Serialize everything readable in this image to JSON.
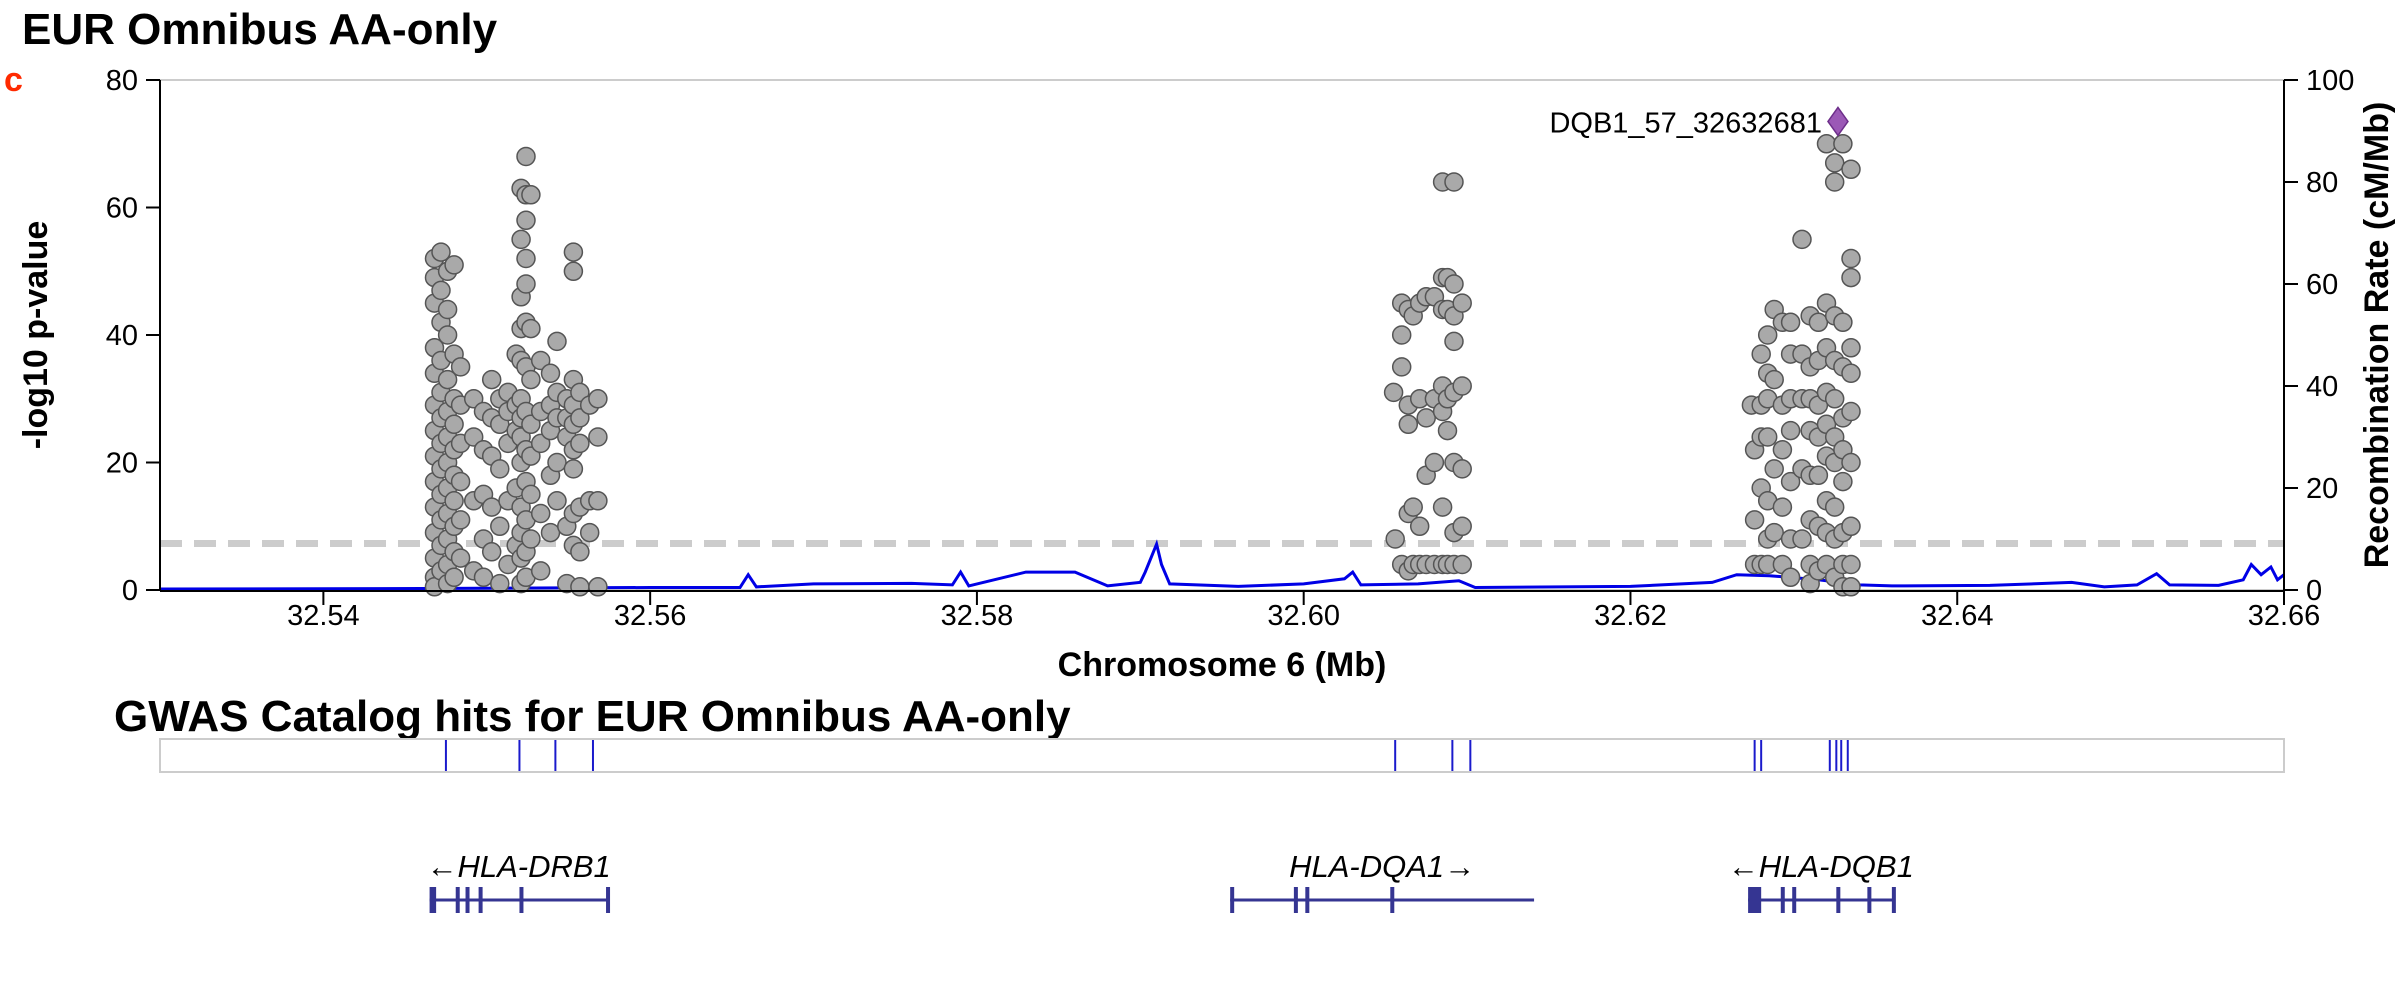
{
  "title": "EUR Omnibus AA-only",
  "panel_label": "c",
  "colors": {
    "points": "#a9a9a9",
    "point_stroke": "#555555",
    "recomb": "#0000e6",
    "threshold": "#cccccc",
    "lead": "#9b59b6",
    "panel_label": "#ff2a00",
    "gene": "#353592",
    "hits": "#1a1acc"
  },
  "chart_data": {
    "type": "scatter",
    "xlabel": "Chromosome 6 (Mb)",
    "ylabel": "-log10 p-value",
    "y2label": "Recombination Rate (cM/Mb)",
    "xlim": [
      32.53,
      32.66
    ],
    "ylim": [
      0,
      80
    ],
    "y2lim": [
      0,
      100
    ],
    "xticks": [
      "32.54",
      "32.56",
      "32.58",
      "32.60",
      "32.62",
      "32.64",
      "32.66"
    ],
    "yticks": [
      "0",
      "20",
      "40",
      "60",
      "80"
    ],
    "y2ticks": [
      "0",
      "20",
      "40",
      "60",
      "80",
      "100"
    ],
    "threshold": 7.3,
    "lead_snp": {
      "label": "DQB1_57_32632681",
      "x": 32.6327,
      "y": 73.5
    },
    "points": [
      [
        32.5468,
        52
      ],
      [
        32.5468,
        49
      ],
      [
        32.5468,
        45
      ],
      [
        32.5468,
        38
      ],
      [
        32.5468,
        34
      ],
      [
        32.5468,
        29
      ],
      [
        32.5468,
        25
      ],
      [
        32.5468,
        21
      ],
      [
        32.5468,
        17
      ],
      [
        32.5468,
        13
      ],
      [
        32.5468,
        9
      ],
      [
        32.5468,
        5
      ],
      [
        32.5468,
        2
      ],
      [
        32.5468,
        0.5
      ],
      [
        32.5472,
        53
      ],
      [
        32.5472,
        47
      ],
      [
        32.5472,
        42
      ],
      [
        32.5472,
        36
      ],
      [
        32.5472,
        31
      ],
      [
        32.5472,
        27
      ],
      [
        32.5472,
        23
      ],
      [
        32.5472,
        19
      ],
      [
        32.5472,
        15
      ],
      [
        32.5472,
        11
      ],
      [
        32.5472,
        7
      ],
      [
        32.5472,
        3
      ],
      [
        32.5476,
        50
      ],
      [
        32.5476,
        44
      ],
      [
        32.5476,
        40
      ],
      [
        32.5476,
        33
      ],
      [
        32.5476,
        28
      ],
      [
        32.5476,
        24
      ],
      [
        32.5476,
        20
      ],
      [
        32.5476,
        16
      ],
      [
        32.5476,
        12
      ],
      [
        32.5476,
        8
      ],
      [
        32.5476,
        4
      ],
      [
        32.5476,
        1
      ],
      [
        32.548,
        51
      ],
      [
        32.548,
        37
      ],
      [
        32.548,
        30
      ],
      [
        32.548,
        26
      ],
      [
        32.548,
        22
      ],
      [
        32.548,
        18
      ],
      [
        32.548,
        14
      ],
      [
        32.548,
        10
      ],
      [
        32.548,
        6
      ],
      [
        32.548,
        2
      ],
      [
        32.5484,
        35
      ],
      [
        32.5484,
        29
      ],
      [
        32.5484,
        23
      ],
      [
        32.5484,
        17
      ],
      [
        32.5484,
        11
      ],
      [
        32.5484,
        5
      ],
      [
        32.5492,
        30
      ],
      [
        32.5492,
        24
      ],
      [
        32.5492,
        14
      ],
      [
        32.5492,
        3
      ],
      [
        32.5498,
        28
      ],
      [
        32.5498,
        22
      ],
      [
        32.5498,
        15
      ],
      [
        32.5498,
        8
      ],
      [
        32.5498,
        2
      ],
      [
        32.5503,
        33
      ],
      [
        32.5503,
        27
      ],
      [
        32.5503,
        21
      ],
      [
        32.5503,
        13
      ],
      [
        32.5503,
        6
      ],
      [
        32.5508,
        30
      ],
      [
        32.5508,
        26
      ],
      [
        32.5508,
        19
      ],
      [
        32.5508,
        10
      ],
      [
        32.5508,
        1
      ],
      [
        32.5513,
        31
      ],
      [
        32.5513,
        28
      ],
      [
        32.5513,
        23
      ],
      [
        32.5513,
        14
      ],
      [
        32.5513,
        4
      ],
      [
        32.5518,
        37
      ],
      [
        32.5518,
        29
      ],
      [
        32.5518,
        25
      ],
      [
        32.5518,
        16
      ],
      [
        32.5518,
        7
      ],
      [
        32.5521,
        63
      ],
      [
        32.5521,
        55
      ],
      [
        32.5521,
        46
      ],
      [
        32.5521,
        41
      ],
      [
        32.5521,
        36
      ],
      [
        32.5521,
        30
      ],
      [
        32.5521,
        27
      ],
      [
        32.5521,
        24
      ],
      [
        32.5521,
        20
      ],
      [
        32.5521,
        13
      ],
      [
        32.5521,
        9
      ],
      [
        32.5521,
        5
      ],
      [
        32.5521,
        1
      ],
      [
        32.5524,
        68
      ],
      [
        32.5524,
        62
      ],
      [
        32.5524,
        58
      ],
      [
        32.5524,
        52
      ],
      [
        32.5524,
        48
      ],
      [
        32.5524,
        42
      ],
      [
        32.5524,
        35
      ],
      [
        32.5524,
        28
      ],
      [
        32.5524,
        22
      ],
      [
        32.5524,
        17
      ],
      [
        32.5524,
        11
      ],
      [
        32.5524,
        6
      ],
      [
        32.5524,
        2
      ],
      [
        32.5527,
        62
      ],
      [
        32.5527,
        41
      ],
      [
        32.5527,
        33
      ],
      [
        32.5527,
        26
      ],
      [
        32.5527,
        21
      ],
      [
        32.5527,
        15
      ],
      [
        32.5527,
        8
      ],
      [
        32.5533,
        36
      ],
      [
        32.5533,
        28
      ],
      [
        32.5533,
        23
      ],
      [
        32.5533,
        12
      ],
      [
        32.5533,
        3
      ],
      [
        32.5539,
        34
      ],
      [
        32.5539,
        29
      ],
      [
        32.5539,
        25
      ],
      [
        32.5539,
        18
      ],
      [
        32.5539,
        9
      ],
      [
        32.5543,
        39
      ],
      [
        32.5543,
        31
      ],
      [
        32.5543,
        27
      ],
      [
        32.5543,
        20
      ],
      [
        32.5543,
        14
      ],
      [
        32.5549,
        30
      ],
      [
        32.5549,
        27
      ],
      [
        32.5549,
        24
      ],
      [
        32.5549,
        10
      ],
      [
        32.5549,
        1
      ],
      [
        32.5553,
        53
      ],
      [
        32.5553,
        50
      ],
      [
        32.5553,
        33
      ],
      [
        32.5553,
        29
      ],
      [
        32.5553,
        26
      ],
      [
        32.5553,
        22
      ],
      [
        32.5553,
        19
      ],
      [
        32.5553,
        12
      ],
      [
        32.5553,
        7
      ],
      [
        32.5557,
        31
      ],
      [
        32.5557,
        27
      ],
      [
        32.5557,
        23
      ],
      [
        32.5557,
        13
      ],
      [
        32.5557,
        6
      ],
      [
        32.5557,
        0.5
      ],
      [
        32.5563,
        29
      ],
      [
        32.5563,
        14
      ],
      [
        32.5563,
        9
      ],
      [
        32.5568,
        30
      ],
      [
        32.5568,
        24
      ],
      [
        32.5568,
        14
      ],
      [
        32.5568,
        0.5
      ],
      [
        32.6055,
        31
      ],
      [
        32.6056,
        8
      ],
      [
        32.606,
        45
      ],
      [
        32.606,
        40
      ],
      [
        32.606,
        35
      ],
      [
        32.606,
        4
      ],
      [
        32.6064,
        44
      ],
      [
        32.6064,
        29
      ],
      [
        32.6064,
        26
      ],
      [
        32.6064,
        12
      ],
      [
        32.6064,
        3
      ],
      [
        32.6067,
        43
      ],
      [
        32.6067,
        13
      ],
      [
        32.6067,
        4
      ],
      [
        32.6071,
        45
      ],
      [
        32.6071,
        30
      ],
      [
        32.6071,
        10
      ],
      [
        32.6071,
        4
      ],
      [
        32.6075,
        46
      ],
      [
        32.6075,
        27
      ],
      [
        32.6075,
        18
      ],
      [
        32.6075,
        4
      ],
      [
        32.608,
        46
      ],
      [
        32.608,
        30
      ],
      [
        32.608,
        20
      ],
      [
        32.608,
        4
      ],
      [
        32.6085,
        64
      ],
      [
        32.6085,
        49
      ],
      [
        32.6085,
        44
      ],
      [
        32.6085,
        32
      ],
      [
        32.6085,
        28
      ],
      [
        32.6085,
        13
      ],
      [
        32.6085,
        4
      ],
      [
        32.6088,
        49
      ],
      [
        32.6088,
        44
      ],
      [
        32.6088,
        30
      ],
      [
        32.6088,
        25
      ],
      [
        32.6088,
        4
      ],
      [
        32.6092,
        64
      ],
      [
        32.6092,
        48
      ],
      [
        32.6092,
        43
      ],
      [
        32.6092,
        39
      ],
      [
        32.6092,
        31
      ],
      [
        32.6092,
        20
      ],
      [
        32.6092,
        9
      ],
      [
        32.6092,
        4
      ],
      [
        32.6097,
        45
      ],
      [
        32.6097,
        32
      ],
      [
        32.6097,
        19
      ],
      [
        32.6097,
        10
      ],
      [
        32.6097,
        4
      ],
      [
        32.6274,
        29
      ],
      [
        32.6276,
        22
      ],
      [
        32.6276,
        11
      ],
      [
        32.6276,
        4
      ],
      [
        32.628,
        37
      ],
      [
        32.628,
        29
      ],
      [
        32.628,
        24
      ],
      [
        32.628,
        16
      ],
      [
        32.628,
        4
      ],
      [
        32.6284,
        40
      ],
      [
        32.6284,
        34
      ],
      [
        32.6284,
        30
      ],
      [
        32.6284,
        24
      ],
      [
        32.6284,
        14
      ],
      [
        32.6284,
        8
      ],
      [
        32.6284,
        4
      ],
      [
        32.6288,
        44
      ],
      [
        32.6288,
        33
      ],
      [
        32.6288,
        19
      ],
      [
        32.6288,
        9
      ],
      [
        32.6293,
        42
      ],
      [
        32.6293,
        29
      ],
      [
        32.6293,
        22
      ],
      [
        32.6293,
        13
      ],
      [
        32.6293,
        4
      ],
      [
        32.6298,
        42
      ],
      [
        32.6298,
        37
      ],
      [
        32.6298,
        30
      ],
      [
        32.6298,
        25
      ],
      [
        32.6298,
        17
      ],
      [
        32.6298,
        8
      ],
      [
        32.6298,
        2
      ],
      [
        32.6305,
        55
      ],
      [
        32.6305,
        37
      ],
      [
        32.6305,
        30
      ],
      [
        32.6305,
        19
      ],
      [
        32.6305,
        8
      ],
      [
        32.631,
        43
      ],
      [
        32.631,
        35
      ],
      [
        32.631,
        30
      ],
      [
        32.631,
        25
      ],
      [
        32.631,
        18
      ],
      [
        32.631,
        11
      ],
      [
        32.631,
        4
      ],
      [
        32.631,
        1
      ],
      [
        32.6315,
        42
      ],
      [
        32.6315,
        36
      ],
      [
        32.6315,
        29
      ],
      [
        32.6315,
        24
      ],
      [
        32.6315,
        18
      ],
      [
        32.6315,
        10
      ],
      [
        32.6315,
        3
      ],
      [
        32.632,
        70
      ],
      [
        32.632,
        45
      ],
      [
        32.632,
        38
      ],
      [
        32.632,
        31
      ],
      [
        32.632,
        26
      ],
      [
        32.632,
        21
      ],
      [
        32.632,
        14
      ],
      [
        32.632,
        9
      ],
      [
        32.632,
        4
      ],
      [
        32.6325,
        67
      ],
      [
        32.6325,
        64
      ],
      [
        32.6325,
        43
      ],
      [
        32.6325,
        36
      ],
      [
        32.6325,
        30
      ],
      [
        32.6325,
        24
      ],
      [
        32.6325,
        20
      ],
      [
        32.6325,
        13
      ],
      [
        32.6325,
        8
      ],
      [
        32.6325,
        2
      ],
      [
        32.633,
        70
      ],
      [
        32.633,
        42
      ],
      [
        32.633,
        35
      ],
      [
        32.633,
        27
      ],
      [
        32.633,
        22
      ],
      [
        32.633,
        17
      ],
      [
        32.633,
        9
      ],
      [
        32.633,
        4
      ],
      [
        32.633,
        0.5
      ],
      [
        32.6335,
        66
      ],
      [
        32.6335,
        52
      ],
      [
        32.6335,
        49
      ],
      [
        32.6335,
        38
      ],
      [
        32.6335,
        34
      ],
      [
        32.6335,
        28
      ],
      [
        32.6335,
        20
      ],
      [
        32.6335,
        10
      ],
      [
        32.6335,
        4
      ],
      [
        32.6335,
        0.5
      ]
    ],
    "recombination": [
      [
        32.53,
        0.2
      ],
      [
        32.546,
        0.3
      ],
      [
        32.56,
        0.5
      ],
      [
        32.5655,
        0.5
      ],
      [
        32.566,
        3
      ],
      [
        32.5665,
        0.6
      ],
      [
        32.57,
        1.2
      ],
      [
        32.576,
        1.3
      ],
      [
        32.5785,
        1.0
      ],
      [
        32.579,
        3.5
      ],
      [
        32.5795,
        0.8
      ],
      [
        32.583,
        3.5
      ],
      [
        32.586,
        3.5
      ],
      [
        32.588,
        0.8
      ],
      [
        32.59,
        1.5
      ],
      [
        32.5903,
        3.5
      ],
      [
        32.591,
        9
      ],
      [
        32.5913,
        5
      ],
      [
        32.5918,
        1.2
      ],
      [
        32.596,
        0.7
      ],
      [
        32.6,
        1.2
      ],
      [
        32.6025,
        2.2
      ],
      [
        32.603,
        3.5
      ],
      [
        32.6035,
        1.0
      ],
      [
        32.607,
        1.2
      ],
      [
        32.6095,
        1.8
      ],
      [
        32.6105,
        0.5
      ],
      [
        32.62,
        0.7
      ],
      [
        32.625,
        1.5
      ],
      [
        32.6265,
        3.0
      ],
      [
        32.6285,
        2.8
      ],
      [
        32.6315,
        2.0
      ],
      [
        32.634,
        1.0
      ],
      [
        32.636,
        0.8
      ],
      [
        32.642,
        0.9
      ],
      [
        32.647,
        1.5
      ],
      [
        32.649,
        0.6
      ],
      [
        32.651,
        1.0
      ],
      [
        32.6522,
        3.2
      ],
      [
        32.653,
        1.0
      ],
      [
        32.656,
        0.9
      ],
      [
        32.6575,
        2.0
      ],
      [
        32.658,
        5.0
      ],
      [
        32.6586,
        3.0
      ],
      [
        32.6592,
        4.5
      ],
      [
        32.6596,
        2.0
      ],
      [
        32.66,
        3.0
      ]
    ]
  },
  "gwas": {
    "title": "GWAS Catalog hits for EUR Omnibus AA-only",
    "hits": [
      32.5475,
      32.552,
      32.5542,
      32.5565,
      32.6056,
      32.6091,
      32.6102,
      32.6276,
      32.628,
      32.6322,
      32.6326,
      32.6329,
      32.6333
    ]
  },
  "genes": [
    {
      "name": "HLA-DRB1",
      "label": "←HLA-DRB1",
      "start": 32.5465,
      "end": 32.5574,
      "exons": [
        [
          32.5465,
          32.5469
        ],
        [
          32.5481,
          32.5482
        ],
        [
          32.5487,
          32.5488
        ],
        [
          32.5495,
          32.5497
        ],
        [
          32.552,
          32.5522
        ],
        [
          32.5573,
          32.5574
        ]
      ]
    },
    {
      "name": "HLA-DQA1",
      "label": "HLA-DQA1→",
      "start": 32.5955,
      "end": 32.6141,
      "exons": [
        [
          32.5955,
          32.5957
        ],
        [
          32.5994,
          32.5996
        ],
        [
          32.6001,
          32.6003
        ],
        [
          32.6053,
          32.6055
        ]
      ]
    },
    {
      "name": "HLA-DQB1",
      "label": "←HLA-DQB1",
      "start": 32.6272,
      "end": 32.6361,
      "exons": [
        [
          32.6272,
          32.628
        ],
        [
          32.6292,
          32.6294
        ],
        [
          32.6299,
          32.6301
        ],
        [
          32.6326,
          32.6328
        ],
        [
          32.6345,
          32.6346
        ],
        [
          32.636,
          32.6361
        ]
      ]
    }
  ]
}
